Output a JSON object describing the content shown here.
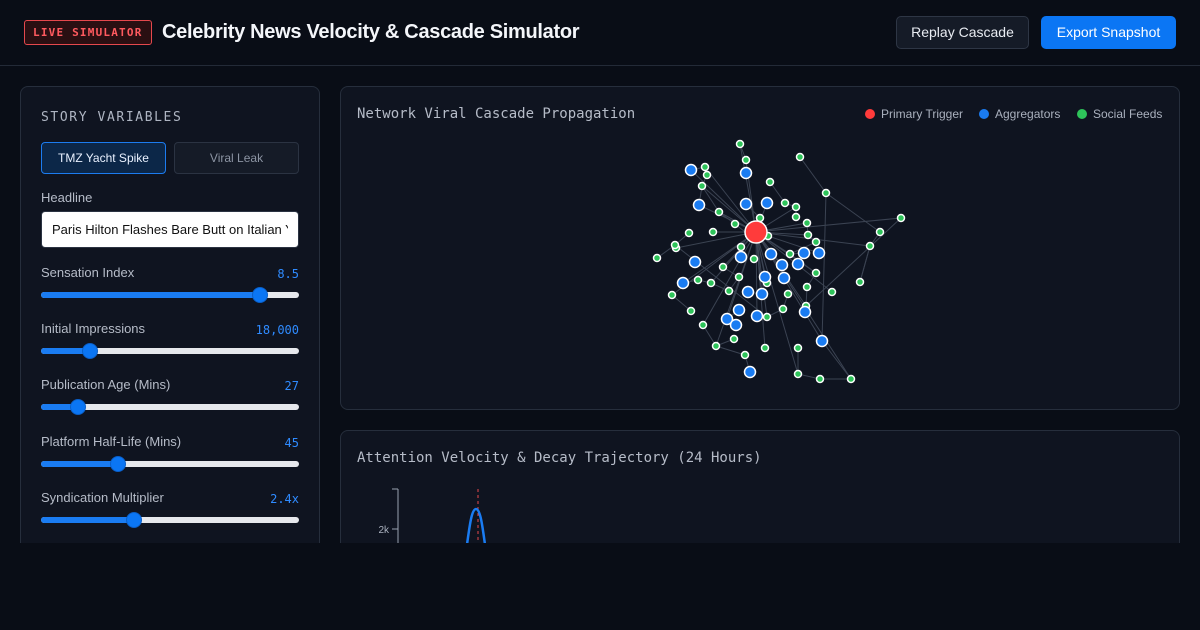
{
  "header": {
    "badge": "LIVE SIMULATOR",
    "title": "Celebrity News Velocity & Cascade Simulator",
    "replay_label": "Replay Cascade",
    "export_label": "Export Snapshot"
  },
  "sidebar": {
    "heading": "STORY VARIABLES",
    "presets": [
      {
        "label": "TMZ Yacht Spike",
        "active": true
      },
      {
        "label": "Viral Leak",
        "active": false
      }
    ],
    "headline_label": "Headline",
    "headline_value": "Paris Hilton Flashes Bare Butt on Italian Yacht",
    "sliders": [
      {
        "label": "Sensation Index",
        "display": "8.5",
        "fraction": 0.85
      },
      {
        "label": "Initial Impressions",
        "display": "18,000",
        "fraction": 0.19
      },
      {
        "label": "Publication Age (Mins)",
        "display": "27",
        "fraction": 0.145
      },
      {
        "label": "Platform Half-Life (Mins)",
        "display": "45",
        "fraction": 0.3
      },
      {
        "label": "Syndication Multiplier",
        "display": "2.4x",
        "fraction": 0.36
      }
    ]
  },
  "network": {
    "title": "Network Viral Cascade Propagation",
    "legend": [
      {
        "label": "Primary Trigger",
        "color": "#ff3b3b"
      },
      {
        "label": "Aggregators",
        "color": "#1a7cf2"
      },
      {
        "label": "Social Feeds",
        "color": "#2ec45a"
      }
    ]
  },
  "decay": {
    "title": "Attention Velocity & Decay Trajectory (24 Hours)",
    "y_tick": "2k"
  }
}
